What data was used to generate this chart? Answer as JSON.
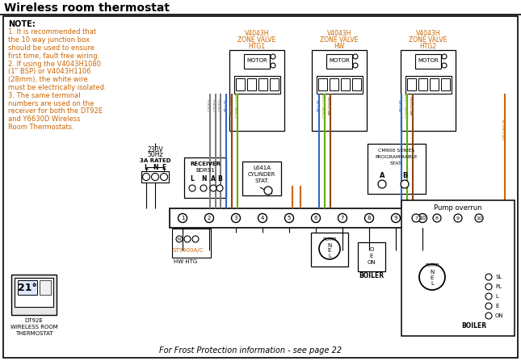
{
  "title": "Wireless room thermostat",
  "bg_color": "#ffffff",
  "note_lines": [
    "1. It is recommended that",
    "the 10 way junction box",
    "should be used to ensure",
    "first time, fault free wiring.",
    "2. If using the V4043H1080",
    "(1\" BSP) or V4043H1106",
    "(28mm), the white wire",
    "must be electrically isolated.",
    "3. The same terminal",
    "numbers are used on the",
    "receiver for both the DT92E",
    "and Y6630D Wireless",
    "Room Thermostats."
  ],
  "valve1_label": [
    "V4043H",
    "ZONE VALVE",
    "HTG1"
  ],
  "valve2_label": [
    "V4043H",
    "ZONE VALVE",
    "HW"
  ],
  "valve3_label": [
    "V4043H",
    "ZONE VALVE",
    "HTG2"
  ],
  "frost_text": "For Frost Protection information - see page 22",
  "pump_overrun": "Pump overrun",
  "dt92e_label": [
    "DT92E",
    "WIRELESS ROOM",
    "THERMOSTAT"
  ],
  "st9400_label": "ST9400A/C",
  "wire_colors": {
    "grey": "#7f7f7f",
    "blue": "#3366cc",
    "brown": "#8B4513",
    "gyellow": "#6aaa00",
    "orange": "#cc6600",
    "black": "#000000",
    "white": "#ffffff"
  },
  "label_color": "#cc6600",
  "title_color": "#000000"
}
